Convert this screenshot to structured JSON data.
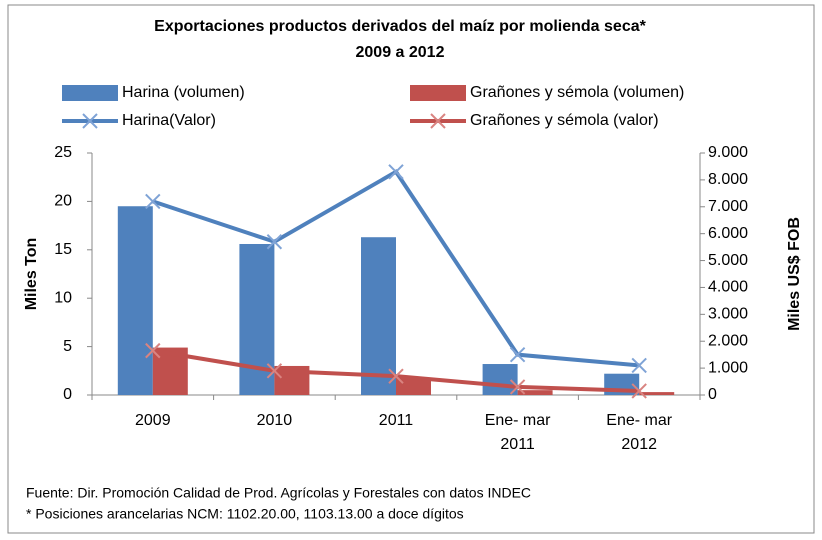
{
  "chart_data": {
    "type": "bar_line",
    "title": "Exportaciones productos derivados del maíz por molienda seca*",
    "subtitle": "2009 a 2012",
    "categories": [
      "2009",
      "2010",
      "2011",
      "Ene- mar 2011",
      "Ene- mar 2012"
    ],
    "series": [
      {
        "name": "Harina (volumen)",
        "color": "#4f81bd",
        "kind": "bar",
        "values": [
          19.5,
          15.6,
          16.3,
          3.2,
          2.2
        ]
      },
      {
        "name": "Grañones y sémola (volumen)",
        "color": "#c0504d",
        "kind": "bar",
        "values": [
          4.9,
          3.0,
          1.8,
          0.5,
          0.3
        ]
      },
      {
        "name": "Harina(Valor)",
        "color": "#4f81bd",
        "kind": "line",
        "axis": "y2",
        "values": [
          7200,
          5700,
          8300,
          1500,
          1100
        ]
      },
      {
        "name": "Grañones y sémola (valor)",
        "color": "#c0504d",
        "kind": "line",
        "axis": "y2",
        "values": [
          1650,
          900,
          700,
          300,
          150
        ]
      }
    ],
    "ylabel": "Miles Ton",
    "y2label": "Miles US$ FOB",
    "ylim": [
      0,
      25
    ],
    "yticks": [
      0,
      5,
      10,
      15,
      20,
      25
    ],
    "y2lim": [
      0,
      9000
    ],
    "y2ticks": [
      0,
      {
        "value": 1000,
        "label": "1.000"
      },
      {
        "value": 2000,
        "label": "2.000"
      },
      {
        "value": 3000,
        "label": "3.000"
      },
      {
        "value": 4000,
        "label": "4.000"
      },
      {
        "value": 5000,
        "label": "5.000"
      },
      {
        "value": 6000,
        "label": "6.000"
      },
      {
        "value": 7000,
        "label": "7.000"
      },
      {
        "value": 8000,
        "label": "8.000"
      },
      {
        "value": 9000,
        "label": "9.000"
      }
    ],
    "notes": [
      "Fuente: Dir. Promoción Calidad de Prod. Agrícolas y Forestales con datos INDEC",
      "* Posiciones arancelarias NCM: 1102.20.00, 1103.13.00 a doce dígitos"
    ]
  }
}
